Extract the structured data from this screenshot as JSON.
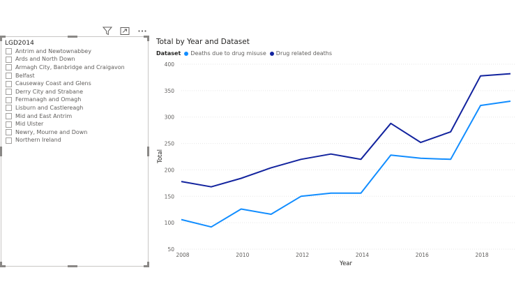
{
  "slicer": {
    "header": "LGD2014",
    "items": [
      {
        "label": "Antrim and Newtownabbey",
        "checked": false
      },
      {
        "label": "Ards and North Down",
        "checked": false
      },
      {
        "label": "Armagh City, Banbridge and Craigavon",
        "checked": false
      },
      {
        "label": "Belfast",
        "checked": false
      },
      {
        "label": "Causeway Coast and Glens",
        "checked": false
      },
      {
        "label": "Derry City and Strabane",
        "checked": false
      },
      {
        "label": "Fermanagh and Omagh",
        "checked": false
      },
      {
        "label": "Lisburn and Castlereagh",
        "checked": false
      },
      {
        "label": "Mid and East Antrim",
        "checked": false
      },
      {
        "label": "Mid Ulster",
        "checked": false
      },
      {
        "label": "Newry, Mourne and Down",
        "checked": false
      },
      {
        "label": "Northern Ireland",
        "checked": false
      }
    ],
    "toolbar": {
      "filter_icon": "filter-icon",
      "focus_icon": "focus-mode-icon",
      "more_icon": "more-options-icon"
    }
  },
  "chart_data": {
    "type": "line",
    "title": "Total by Year and Dataset",
    "legend_title": "Dataset",
    "legend_position": "top-left",
    "xlabel": "Year",
    "ylabel": "Total",
    "x": [
      2008,
      2009,
      2010,
      2011,
      2012,
      2013,
      2014,
      2015,
      2016,
      2017,
      2018,
      2019
    ],
    "xticks": [
      "2008",
      "2010",
      "2012",
      "2014",
      "2016",
      "2018"
    ],
    "yticks": [
      "50",
      "100",
      "150",
      "200",
      "250",
      "300",
      "350",
      "400"
    ],
    "xlim": [
      2008,
      2019
    ],
    "ylim": [
      50,
      400
    ],
    "grid": true,
    "series": [
      {
        "name": "Deaths due to drug misuse",
        "color": "#118dff",
        "values": [
          106,
          92,
          126,
          116,
          150,
          156,
          156,
          228,
          222,
          220,
          322,
          330
        ]
      },
      {
        "name": "Drug related deaths",
        "color": "#12239e",
        "values": [
          178,
          168,
          184,
          204,
          220,
          230,
          220,
          288,
          252,
          272,
          378,
          382
        ]
      }
    ]
  }
}
